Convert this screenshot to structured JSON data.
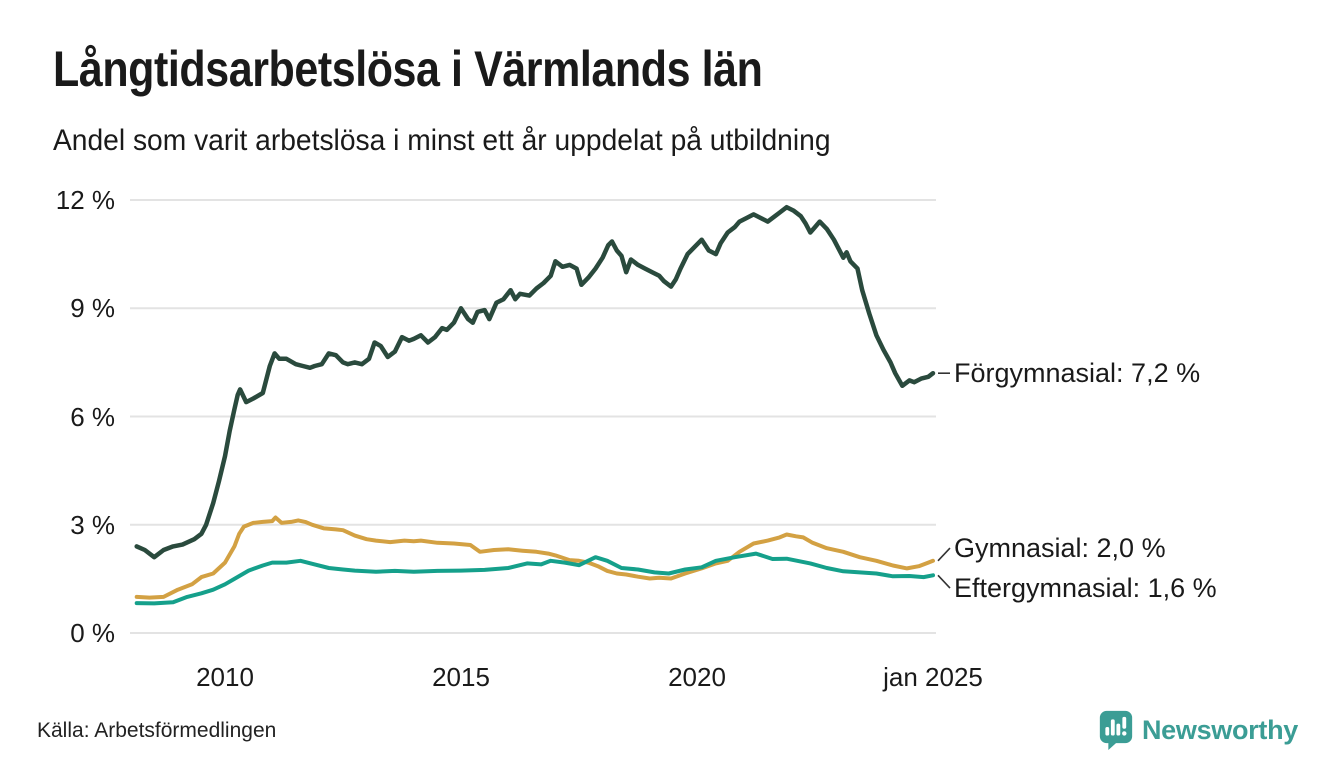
{
  "header": {
    "title": "Långtidsarbetslösa i Värmlands län",
    "subtitle": "Andel som varit arbetslösa i minst ett år uppdelat på utbildning"
  },
  "footer": {
    "source": "Källa: Arbetsförmedlingen",
    "brand": "Newsworthy",
    "brand_color": "#3b9d95"
  },
  "colors": {
    "grid": "#e3e3e3",
    "text": "#1a1a1a",
    "leader": "#333333"
  },
  "chart_data": {
    "type": "line",
    "title": "Långtidsarbetslösa i Värmlands län",
    "subtitle": "Andel som varit arbetslösa i minst ett år uppdelat på utbildning",
    "xlabel": "",
    "ylabel": "",
    "x_unit": "year",
    "y_unit": "%",
    "ylim": [
      0,
      12
    ],
    "xlim": [
      2008.0,
      2025.1
    ],
    "grid": "horizontal",
    "legend_position": "end-of-line-labels",
    "y_ticks": [
      {
        "label": "0 %",
        "value": 0
      },
      {
        "label": "3 %",
        "value": 3
      },
      {
        "label": "6 %",
        "value": 6
      },
      {
        "label": "9 %",
        "value": 9
      },
      {
        "label": "12 %",
        "value": 12
      }
    ],
    "x_ticks": [
      {
        "label": "2010",
        "value": 2010
      },
      {
        "label": "2015",
        "value": 2015
      },
      {
        "label": "2020",
        "value": 2020
      },
      {
        "label": "jan 2025",
        "value": 2025
      }
    ],
    "series": [
      {
        "name": "Förgymnasial",
        "end_label": "Förgymnasial: 7,2 %",
        "end_value_text": "7,2 %",
        "color": "#2a4a3d",
        "points": [
          [
            2008.13,
            2.4
          ],
          [
            2008.3,
            2.3
          ],
          [
            2008.5,
            2.1
          ],
          [
            2008.7,
            2.3
          ],
          [
            2008.9,
            2.4
          ],
          [
            2009.1,
            2.45
          ],
          [
            2009.35,
            2.6
          ],
          [
            2009.5,
            2.75
          ],
          [
            2009.6,
            3.0
          ],
          [
            2009.75,
            3.6
          ],
          [
            2009.87,
            4.2
          ],
          [
            2010.0,
            4.9
          ],
          [
            2010.1,
            5.6
          ],
          [
            2010.2,
            6.2
          ],
          [
            2010.27,
            6.6
          ],
          [
            2010.32,
            6.75
          ],
          [
            2010.45,
            6.4
          ],
          [
            2010.6,
            6.5
          ],
          [
            2010.8,
            6.65
          ],
          [
            2010.95,
            7.4
          ],
          [
            2011.05,
            7.75
          ],
          [
            2011.15,
            7.6
          ],
          [
            2011.3,
            7.6
          ],
          [
            2011.5,
            7.45
          ],
          [
            2011.65,
            7.4
          ],
          [
            2011.8,
            7.35
          ],
          [
            2011.9,
            7.4
          ],
          [
            2012.05,
            7.45
          ],
          [
            2012.2,
            7.75
          ],
          [
            2012.35,
            7.7
          ],
          [
            2012.5,
            7.5
          ],
          [
            2012.6,
            7.45
          ],
          [
            2012.75,
            7.5
          ],
          [
            2012.9,
            7.45
          ],
          [
            2013.05,
            7.6
          ],
          [
            2013.17,
            8.05
          ],
          [
            2013.3,
            7.95
          ],
          [
            2013.45,
            7.65
          ],
          [
            2013.6,
            7.8
          ],
          [
            2013.75,
            8.2
          ],
          [
            2013.9,
            8.1
          ],
          [
            2014.0,
            8.15
          ],
          [
            2014.15,
            8.25
          ],
          [
            2014.3,
            8.05
          ],
          [
            2014.45,
            8.2
          ],
          [
            2014.6,
            8.45
          ],
          [
            2014.7,
            8.4
          ],
          [
            2014.85,
            8.6
          ],
          [
            2015.0,
            9.0
          ],
          [
            2015.15,
            8.7
          ],
          [
            2015.25,
            8.6
          ],
          [
            2015.35,
            8.9
          ],
          [
            2015.5,
            8.95
          ],
          [
            2015.6,
            8.7
          ],
          [
            2015.75,
            9.15
          ],
          [
            2015.9,
            9.25
          ],
          [
            2016.05,
            9.5
          ],
          [
            2016.15,
            9.25
          ],
          [
            2016.25,
            9.4
          ],
          [
            2016.45,
            9.35
          ],
          [
            2016.6,
            9.55
          ],
          [
            2016.75,
            9.7
          ],
          [
            2016.9,
            9.9
          ],
          [
            2017.0,
            10.3
          ],
          [
            2017.15,
            10.15
          ],
          [
            2017.3,
            10.2
          ],
          [
            2017.45,
            10.1
          ],
          [
            2017.55,
            9.65
          ],
          [
            2017.7,
            9.85
          ],
          [
            2017.85,
            10.1
          ],
          [
            2018.0,
            10.4
          ],
          [
            2018.12,
            10.75
          ],
          [
            2018.2,
            10.85
          ],
          [
            2018.3,
            10.6
          ],
          [
            2018.4,
            10.45
          ],
          [
            2018.5,
            10.0
          ],
          [
            2018.6,
            10.35
          ],
          [
            2018.75,
            10.2
          ],
          [
            2018.9,
            10.1
          ],
          [
            2019.05,
            10.0
          ],
          [
            2019.2,
            9.9
          ],
          [
            2019.3,
            9.75
          ],
          [
            2019.45,
            9.6
          ],
          [
            2019.55,
            9.8
          ],
          [
            2019.65,
            10.1
          ],
          [
            2019.8,
            10.5
          ],
          [
            2019.95,
            10.7
          ],
          [
            2020.1,
            10.9
          ],
          [
            2020.25,
            10.6
          ],
          [
            2020.4,
            10.5
          ],
          [
            2020.5,
            10.8
          ],
          [
            2020.65,
            11.1
          ],
          [
            2020.8,
            11.25
          ],
          [
            2020.9,
            11.4
          ],
          [
            2021.05,
            11.5
          ],
          [
            2021.2,
            11.6
          ],
          [
            2021.35,
            11.5
          ],
          [
            2021.5,
            11.4
          ],
          [
            2021.65,
            11.55
          ],
          [
            2021.75,
            11.65
          ],
          [
            2021.9,
            11.8
          ],
          [
            2022.05,
            11.7
          ],
          [
            2022.2,
            11.55
          ],
          [
            2022.3,
            11.35
          ],
          [
            2022.4,
            11.1
          ],
          [
            2022.5,
            11.25
          ],
          [
            2022.6,
            11.4
          ],
          [
            2022.75,
            11.2
          ],
          [
            2022.9,
            10.9
          ],
          [
            2023.0,
            10.65
          ],
          [
            2023.1,
            10.4
          ],
          [
            2023.17,
            10.55
          ],
          [
            2023.25,
            10.3
          ],
          [
            2023.4,
            10.1
          ],
          [
            2023.5,
            9.5
          ],
          [
            2023.65,
            8.85
          ],
          [
            2023.8,
            8.25
          ],
          [
            2023.95,
            7.85
          ],
          [
            2024.1,
            7.5
          ],
          [
            2024.2,
            7.2
          ],
          [
            2024.35,
            6.85
          ],
          [
            2024.5,
            7.0
          ],
          [
            2024.6,
            6.95
          ],
          [
            2024.75,
            7.05
          ],
          [
            2024.9,
            7.1
          ],
          [
            2025.0,
            7.2
          ]
        ]
      },
      {
        "name": "Gymnasial",
        "end_label": "Gymnasial: 2,0 %",
        "end_value_text": "2,0 %",
        "color": "#d3a143",
        "points": [
          [
            2008.13,
            1.0
          ],
          [
            2008.4,
            0.98
          ],
          [
            2008.7,
            1.0
          ],
          [
            2009.0,
            1.2
          ],
          [
            2009.3,
            1.35
          ],
          [
            2009.5,
            1.55
          ],
          [
            2009.75,
            1.65
          ],
          [
            2010.0,
            1.95
          ],
          [
            2010.2,
            2.4
          ],
          [
            2010.3,
            2.75
          ],
          [
            2010.4,
            2.95
          ],
          [
            2010.6,
            3.05
          ],
          [
            2010.8,
            3.08
          ],
          [
            2011.0,
            3.1
          ],
          [
            2011.07,
            3.2
          ],
          [
            2011.2,
            3.05
          ],
          [
            2011.4,
            3.08
          ],
          [
            2011.55,
            3.12
          ],
          [
            2011.7,
            3.08
          ],
          [
            2011.85,
            3.0
          ],
          [
            2012.1,
            2.9
          ],
          [
            2012.35,
            2.87
          ],
          [
            2012.5,
            2.85
          ],
          [
            2012.75,
            2.7
          ],
          [
            2013.0,
            2.6
          ],
          [
            2013.2,
            2.56
          ],
          [
            2013.5,
            2.52
          ],
          [
            2013.8,
            2.56
          ],
          [
            2014.0,
            2.54
          ],
          [
            2014.15,
            2.56
          ],
          [
            2014.5,
            2.5
          ],
          [
            2014.85,
            2.48
          ],
          [
            2015.2,
            2.44
          ],
          [
            2015.4,
            2.25
          ],
          [
            2015.7,
            2.3
          ],
          [
            2016.0,
            2.32
          ],
          [
            2016.3,
            2.28
          ],
          [
            2016.6,
            2.25
          ],
          [
            2016.85,
            2.2
          ],
          [
            2017.0,
            2.15
          ],
          [
            2017.3,
            2.02
          ],
          [
            2017.5,
            2.0
          ],
          [
            2017.7,
            1.95
          ],
          [
            2017.9,
            1.85
          ],
          [
            2018.1,
            1.72
          ],
          [
            2018.3,
            1.65
          ],
          [
            2018.5,
            1.62
          ],
          [
            2018.75,
            1.56
          ],
          [
            2019.0,
            1.51
          ],
          [
            2019.2,
            1.53
          ],
          [
            2019.45,
            1.51
          ],
          [
            2019.75,
            1.65
          ],
          [
            2020.1,
            1.79
          ],
          [
            2020.4,
            1.93
          ],
          [
            2020.65,
            2.0
          ],
          [
            2020.9,
            2.25
          ],
          [
            2021.2,
            2.48
          ],
          [
            2021.5,
            2.56
          ],
          [
            2021.75,
            2.65
          ],
          [
            2021.9,
            2.73
          ],
          [
            2022.1,
            2.68
          ],
          [
            2022.25,
            2.65
          ],
          [
            2022.45,
            2.5
          ],
          [
            2022.75,
            2.35
          ],
          [
            2023.1,
            2.25
          ],
          [
            2023.45,
            2.1
          ],
          [
            2023.8,
            2.0
          ],
          [
            2024.15,
            1.87
          ],
          [
            2024.45,
            1.79
          ],
          [
            2024.7,
            1.85
          ],
          [
            2024.9,
            1.95
          ],
          [
            2025.0,
            2.0
          ]
        ]
      },
      {
        "name": "Eftergymnasial",
        "end_label": "Eftergymnasial: 1,6 %",
        "end_value_text": "1,6 %",
        "color": "#15a08b",
        "points": [
          [
            2008.13,
            0.83
          ],
          [
            2008.5,
            0.82
          ],
          [
            2008.9,
            0.85
          ],
          [
            2009.2,
            1.0
          ],
          [
            2009.5,
            1.1
          ],
          [
            2009.75,
            1.2
          ],
          [
            2010.0,
            1.35
          ],
          [
            2010.2,
            1.5
          ],
          [
            2010.5,
            1.73
          ],
          [
            2010.8,
            1.87
          ],
          [
            2011.0,
            1.95
          ],
          [
            2011.3,
            1.95
          ],
          [
            2011.6,
            2.0
          ],
          [
            2011.9,
            1.9
          ],
          [
            2012.2,
            1.8
          ],
          [
            2012.5,
            1.76
          ],
          [
            2012.75,
            1.73
          ],
          [
            2013.2,
            1.7
          ],
          [
            2013.6,
            1.72
          ],
          [
            2014.0,
            1.7
          ],
          [
            2014.5,
            1.72
          ],
          [
            2015.0,
            1.73
          ],
          [
            2015.5,
            1.75
          ],
          [
            2016.0,
            1.8
          ],
          [
            2016.4,
            1.93
          ],
          [
            2016.7,
            1.9
          ],
          [
            2016.9,
            2.0
          ],
          [
            2017.2,
            1.95
          ],
          [
            2017.5,
            1.88
          ],
          [
            2017.85,
            2.1
          ],
          [
            2018.1,
            2.0
          ],
          [
            2018.4,
            1.8
          ],
          [
            2018.75,
            1.76
          ],
          [
            2019.1,
            1.68
          ],
          [
            2019.4,
            1.65
          ],
          [
            2019.75,
            1.76
          ],
          [
            2020.1,
            1.82
          ],
          [
            2020.4,
            2.0
          ],
          [
            2020.8,
            2.1
          ],
          [
            2021.25,
            2.2
          ],
          [
            2021.6,
            2.05
          ],
          [
            2021.9,
            2.06
          ],
          [
            2022.4,
            1.93
          ],
          [
            2022.75,
            1.8
          ],
          [
            2023.1,
            1.71
          ],
          [
            2023.45,
            1.68
          ],
          [
            2023.8,
            1.65
          ],
          [
            2024.15,
            1.57
          ],
          [
            2024.5,
            1.58
          ],
          [
            2024.8,
            1.55
          ],
          [
            2025.0,
            1.6
          ]
        ]
      }
    ]
  }
}
